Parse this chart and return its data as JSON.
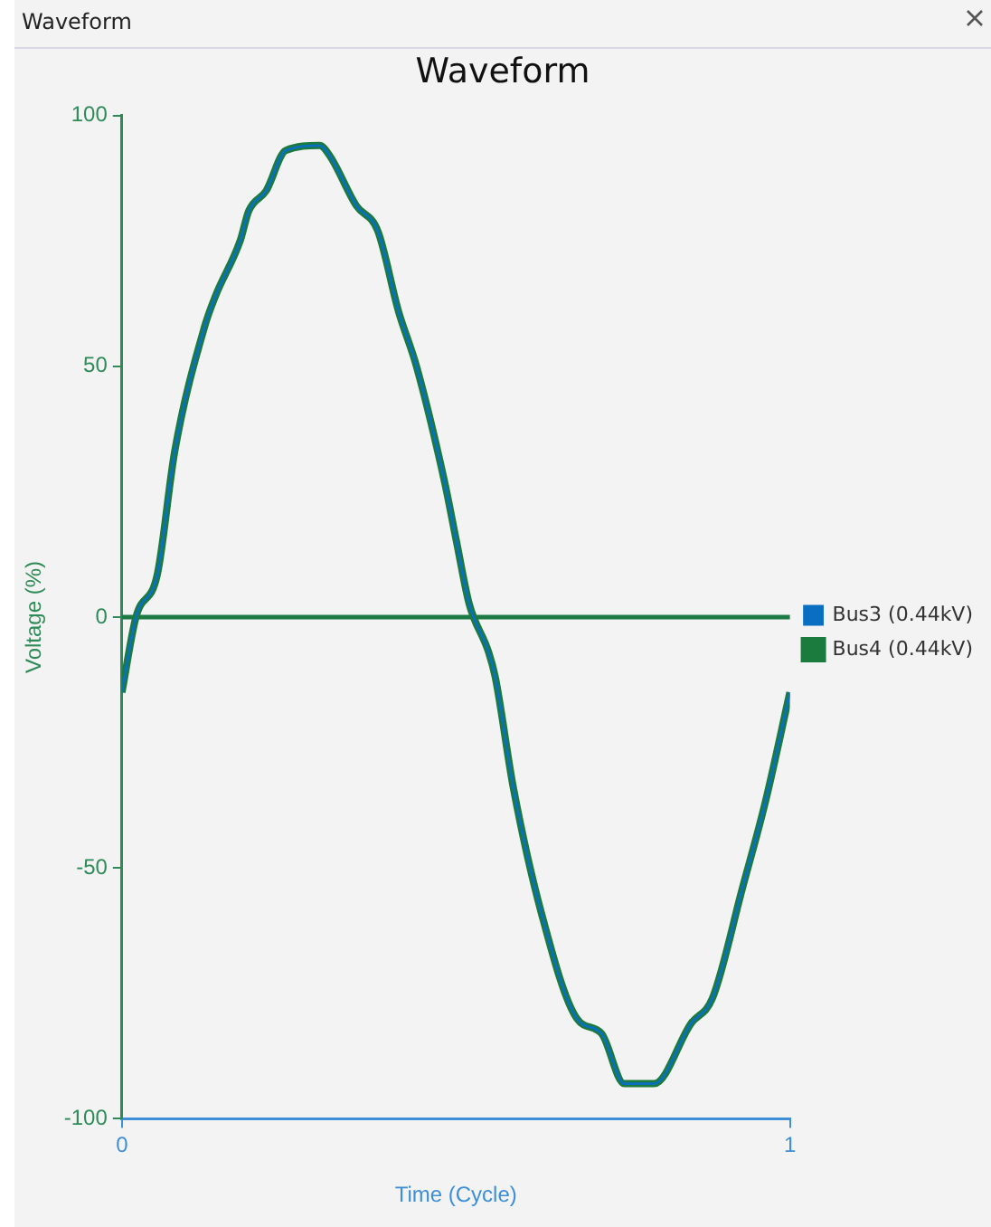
{
  "chart_data": {
    "type": "line",
    "title": "Waveform",
    "annotations": [
      "Waveform"
    ],
    "xlabel": "Time (Cycle)",
    "ylabel": "Voltage (%)",
    "xlim": [
      0,
      1
    ],
    "xticks": [
      0,
      1
    ],
    "ylim": [
      -100,
      100
    ],
    "yticks": [
      -100,
      -50,
      0,
      50,
      100
    ],
    "grid": false,
    "legend": "right",
    "marker": "none",
    "line_style": "solid",
    "ref_lines": [
      {
        "axis": "y",
        "value": 0,
        "color": "#1e7a45"
      }
    ],
    "x": [
      0,
      0.021,
      0.053,
      0.079,
      0.124,
      0.14,
      0.177,
      0.19,
      0.216,
      0.245,
      0.296,
      0.311,
      0.351,
      0.383,
      0.414,
      0.441,
      0.483,
      0.501,
      0.52,
      0.549,
      0.559,
      0.586,
      0.628,
      0.681,
      0.718,
      0.752,
      0.797,
      0.852,
      0.884,
      0.929,
      0.963,
      1
    ],
    "series": [
      {
        "name": "Bus3 (0.44kV)",
        "color": "#0a6fc2",
        "values": [
          -15,
          0,
          8.5,
          33,
          58,
          64,
          75,
          81,
          85,
          93,
          94,
          92,
          82,
          77,
          61,
          50,
          27,
          15,
          2.6,
          -7,
          -12,
          -34,
          -59,
          -80,
          -83,
          -93,
          -93,
          -81,
          -76,
          -54,
          -37,
          -15
        ]
      },
      {
        "name": "Bus4 (0.44kV)",
        "color": "#1b7a3e",
        "values": [
          -15,
          0,
          8.5,
          33,
          58,
          64,
          75,
          81,
          85,
          93,
          94,
          92,
          82,
          77,
          61,
          50,
          27,
          15,
          2.6,
          -7,
          -12,
          -34,
          -59,
          -80,
          -83,
          -93,
          -93,
          -81,
          -76,
          -54,
          -37,
          -15
        ]
      }
    ]
  }
}
